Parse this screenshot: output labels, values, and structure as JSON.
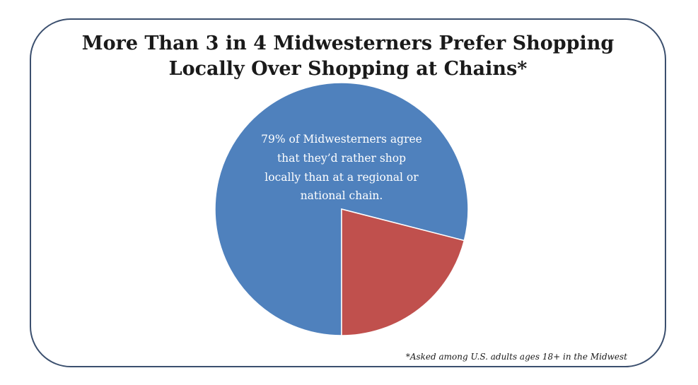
{
  "title_lines": [
    "More Than 3 in 4 Midwesterners Prefer Shopping",
    "Locally Over Shopping at Chains*"
  ],
  "footnote": "*Asked among U.S. adults ages 18+ in the Midwest",
  "chart_data": {
    "type": "pie",
    "slices": [
      {
        "value": 79,
        "color": "#4f81bd"
      },
      {
        "value": 21,
        "color": "#c0504d"
      }
    ],
    "annotation_lines": [
      "79% of Midwesterners agree",
      "that they’d rather shop",
      "locally  than at a regional or",
      "national chain."
    ]
  }
}
